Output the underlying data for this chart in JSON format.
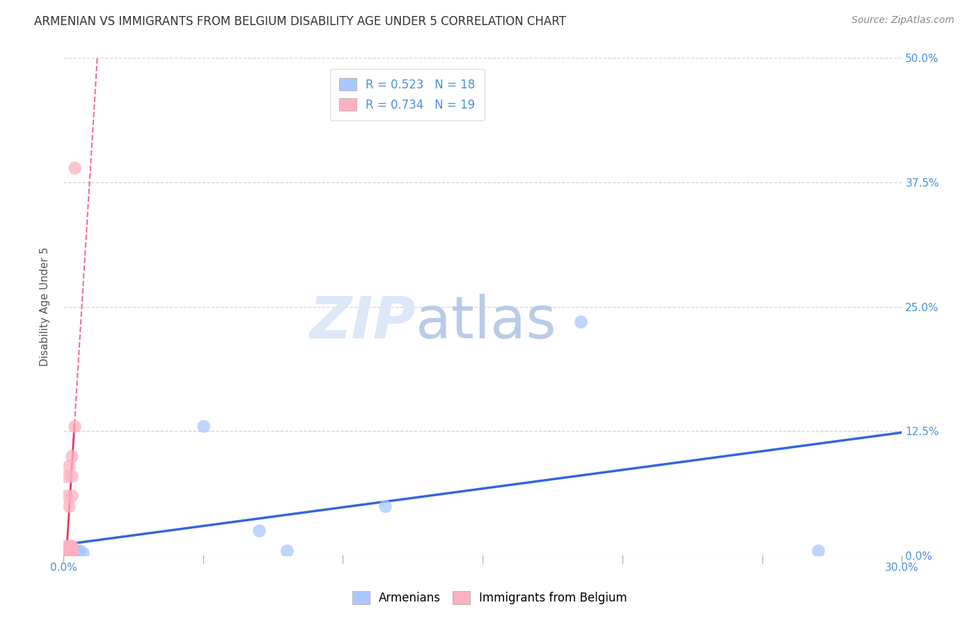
{
  "title": "ARMENIAN VS IMMIGRANTS FROM BELGIUM DISABILITY AGE UNDER 5 CORRELATION CHART",
  "source": "Source: ZipAtlas.com",
  "ylabel": "Disability Age Under 5",
  "R_armenian": 0.523,
  "N_armenian": 18,
  "R_belgium": 0.734,
  "N_belgium": 19,
  "armenian_color": "#a8c8ff",
  "belgium_color": "#ffb0c0",
  "armenian_line_color": "#3366dd",
  "belgium_line_color": "#e83060",
  "background_color": "#ffffff",
  "xlim": [
    0.0,
    0.3
  ],
  "ylim": [
    0.0,
    0.5
  ],
  "xticks": [
    0.0,
    0.05,
    0.1,
    0.15,
    0.2,
    0.25,
    0.3
  ],
  "yticks": [
    0.0,
    0.125,
    0.25,
    0.375,
    0.5
  ],
  "ytick_labels": [
    "0.0%",
    "12.5%",
    "25.0%",
    "37.5%",
    "50.0%"
  ],
  "armenian_x": [
    0.001,
    0.002,
    0.002,
    0.002,
    0.003,
    0.003,
    0.003,
    0.004,
    0.004,
    0.005,
    0.006,
    0.007,
    0.05,
    0.07,
    0.08,
    0.115,
    0.185,
    0.27
  ],
  "armenian_y": [
    0.005,
    0.002,
    0.005,
    0.005,
    0.002,
    0.005,
    0.008,
    0.003,
    0.005,
    0.005,
    0.005,
    0.003,
    0.13,
    0.025,
    0.005,
    0.05,
    0.235,
    0.005
  ],
  "belgium_x": [
    0.001,
    0.001,
    0.001,
    0.001,
    0.002,
    0.002,
    0.002,
    0.002,
    0.002,
    0.002,
    0.003,
    0.003,
    0.003,
    0.003,
    0.003,
    0.003,
    0.003,
    0.004,
    0.004
  ],
  "belgium_y": [
    0.005,
    0.01,
    0.06,
    0.08,
    0.005,
    0.005,
    0.008,
    0.01,
    0.05,
    0.09,
    0.005,
    0.005,
    0.005,
    0.01,
    0.06,
    0.08,
    0.1,
    0.13,
    0.39
  ],
  "watermark_zip": "ZIP",
  "watermark_atlas": "atlas",
  "watermark_color_zip": "#dce8f8",
  "watermark_color_atlas": "#c8d8f0",
  "title_fontsize": 12,
  "axis_label_fontsize": 11,
  "tick_fontsize": 11,
  "legend_fontsize": 12,
  "source_fontsize": 10
}
